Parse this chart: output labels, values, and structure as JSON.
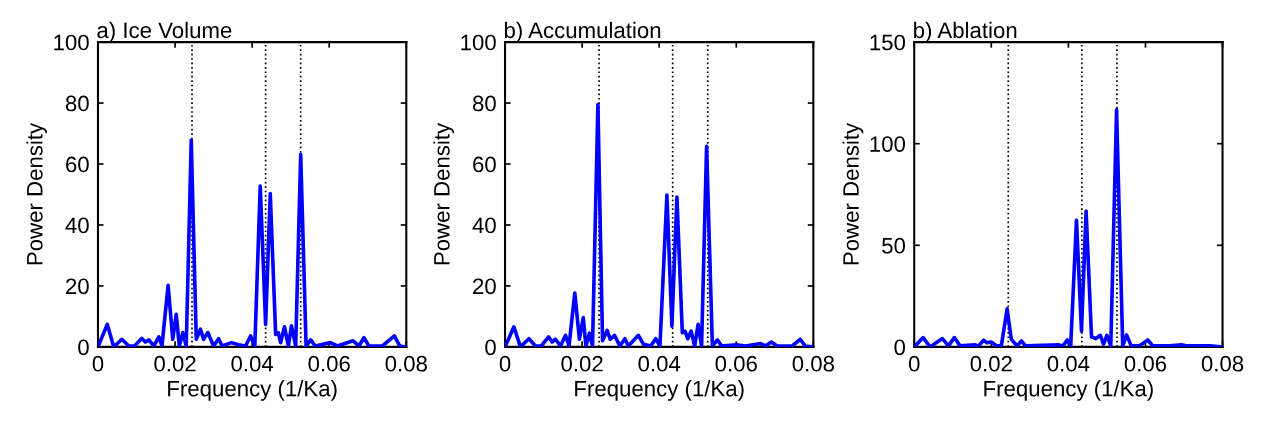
{
  "chart_data": [
    {
      "type": "line",
      "title": "a) Ice Volume",
      "xlabel": "Frequency (1/Ka)",
      "ylabel": "Power Density",
      "xlim": [
        0,
        0.08
      ],
      "xticks": [
        0,
        0.02,
        0.04,
        0.06,
        0.08
      ],
      "ylim": [
        0,
        100
      ],
      "yticks": [
        0,
        20,
        40,
        60,
        80,
        100
      ],
      "grid": false,
      "legend": false,
      "ref_lines": [
        {
          "axis": "x",
          "value": 0.0244,
          "color": "#000000",
          "line_style": "dotted"
        },
        {
          "axis": "x",
          "value": 0.0435,
          "color": "#000000",
          "line_style": "dotted"
        },
        {
          "axis": "x",
          "value": 0.0526,
          "color": "#000000",
          "line_style": "dotted"
        }
      ],
      "series": [
        {
          "color": "#0000ff",
          "x": [
            0,
            0.0024,
            0.0041,
            0.0062,
            0.008,
            0.0095,
            0.0114,
            0.0123,
            0.0132,
            0.0145,
            0.0158,
            0.0166,
            0.0182,
            0.0194,
            0.0203,
            0.0211,
            0.022,
            0.0229,
            0.0242,
            0.0255,
            0.0266,
            0.0274,
            0.0285,
            0.03,
            0.0313,
            0.0322,
            0.0346,
            0.0365,
            0.0383,
            0.0396,
            0.0407,
            0.0421,
            0.0435,
            0.0447,
            0.0461,
            0.0468,
            0.0474,
            0.0484,
            0.0494,
            0.0502,
            0.0513,
            0.0526,
            0.054,
            0.0552,
            0.0564,
            0.0603,
            0.0621,
            0.0662,
            0.0677,
            0.069,
            0.0703,
            0.0738,
            0.0769,
            0.0783,
            0.08
          ],
          "values": [
            0,
            7.4,
            0,
            2.5,
            0.3,
            0.3,
            2.8,
            1.6,
            2.3,
            0.3,
            3.3,
            0.3,
            20.2,
            2.5,
            10.7,
            0.3,
            4.7,
            0.3,
            67.9,
            2.5,
            5.8,
            2.5,
            4.7,
            0.3,
            2.7,
            0.3,
            1.4,
            0.7,
            0.3,
            3.6,
            0.3,
            52.8,
            7.4,
            50.3,
            4.1,
            4.6,
            1.4,
            6.6,
            0.3,
            6.9,
            0.3,
            63.2,
            0.3,
            2.3,
            0.3,
            1.4,
            0.3,
            2,
            0.3,
            3,
            0.3,
            0.3,
            3.6,
            0.3,
            0
          ]
        }
      ]
    },
    {
      "type": "line",
      "title": "b) Accumulation",
      "xlabel": "Frequency (1/Ka)",
      "ylabel": "Power Density",
      "xlim": [
        0,
        0.08
      ],
      "xticks": [
        0,
        0.02,
        0.04,
        0.06,
        0.08
      ],
      "ylim": [
        0,
        100
      ],
      "yticks": [
        0,
        20,
        40,
        60,
        80,
        100
      ],
      "grid": false,
      "legend": false,
      "ref_lines": [
        {
          "axis": "x",
          "value": 0.0244,
          "color": "#000000",
          "line_style": "dotted"
        },
        {
          "axis": "x",
          "value": 0.0435,
          "color": "#000000",
          "line_style": "dotted"
        },
        {
          "axis": "x",
          "value": 0.0526,
          "color": "#000000",
          "line_style": "dotted"
        }
      ],
      "series": [
        {
          "color": "#0000ff",
          "x": [
            0,
            0.0023,
            0.004,
            0.0062,
            0.0079,
            0.0094,
            0.0113,
            0.0122,
            0.0131,
            0.0144,
            0.0157,
            0.0166,
            0.0181,
            0.0193,
            0.0203,
            0.021,
            0.0219,
            0.0227,
            0.0241,
            0.0253,
            0.0265,
            0.0273,
            0.0284,
            0.0298,
            0.0311,
            0.032,
            0.0346,
            0.0359,
            0.0378,
            0.0391,
            0.0402,
            0.042,
            0.0433,
            0.0446,
            0.046,
            0.0467,
            0.0474,
            0.0483,
            0.0492,
            0.0501,
            0.051,
            0.0523,
            0.0538,
            0.0551,
            0.0562,
            0.06,
            0.0624,
            0.0663,
            0.0676,
            0.0691,
            0.0706,
            0.0745,
            0.0766,
            0.0779,
            0.08
          ],
          "values": [
            0,
            6.6,
            0,
            2.7,
            0.3,
            0.3,
            3.3,
            1.6,
            2.5,
            0.3,
            3.8,
            0.3,
            17.7,
            2.5,
            9.6,
            0.3,
            4.5,
            0.3,
            79.5,
            2,
            5.4,
            2.5,
            3.8,
            0.3,
            2.7,
            0.3,
            3.8,
            0.9,
            0.3,
            2.7,
            0.3,
            49.8,
            6.8,
            49.2,
            4.7,
            5.2,
            2.7,
            5.2,
            0.3,
            7.4,
            0.3,
            65.8,
            0.3,
            2.3,
            0.3,
            0.7,
            0.3,
            1.1,
            0.3,
            1.6,
            0.3,
            0.3,
            2.5,
            0.3,
            0
          ]
        }
      ]
    },
    {
      "type": "line",
      "title": "b) Ablation",
      "xlabel": "Frequency (1/Ka)",
      "ylabel": "Power Density",
      "xlim": [
        0,
        0.08
      ],
      "xticks": [
        0,
        0.02,
        0.04,
        0.06,
        0.08
      ],
      "ylim": [
        0,
        150
      ],
      "yticks": [
        0,
        50,
        100,
        150
      ],
      "grid": false,
      "legend": false,
      "ref_lines": [
        {
          "axis": "x",
          "value": 0.0244,
          "color": "#000000",
          "line_style": "dotted"
        },
        {
          "axis": "x",
          "value": 0.0435,
          "color": "#000000",
          "line_style": "dotted"
        },
        {
          "axis": "x",
          "value": 0.0526,
          "color": "#000000",
          "line_style": "dotted"
        }
      ],
      "series": [
        {
          "color": "#0000ff",
          "x": [
            0,
            0.0023,
            0.0041,
            0.0073,
            0.0089,
            0.0104,
            0.0119,
            0.0158,
            0.0167,
            0.018,
            0.0189,
            0.02,
            0.0214,
            0.0226,
            0.0241,
            0.0252,
            0.0267,
            0.0278,
            0.0289,
            0.0376,
            0.0386,
            0.0397,
            0.0406,
            0.0421,
            0.0434,
            0.0446,
            0.046,
            0.0471,
            0.0483,
            0.0491,
            0.05,
            0.051,
            0.0525,
            0.0541,
            0.0551,
            0.0563,
            0.0584,
            0.0606,
            0.0619,
            0.0663,
            0.0693,
            0.0706,
            0.0767,
            0.08
          ],
          "values": [
            0,
            4.6,
            0,
            4.1,
            0.5,
            4.6,
            0.5,
            1,
            0.5,
            3.3,
            2,
            2.4,
            0.5,
            0.5,
            18.7,
            3.7,
            0.5,
            2.9,
            0.5,
            1,
            0.5,
            3.4,
            0.5,
            62.3,
            7.8,
            66.8,
            5,
            4.1,
            5.7,
            1.3,
            5.7,
            0.5,
            116.7,
            0.5,
            5.9,
            0.5,
            0.5,
            3.4,
            0.5,
            0.5,
            1,
            0.5,
            0.5,
            0
          ]
        }
      ]
    }
  ]
}
